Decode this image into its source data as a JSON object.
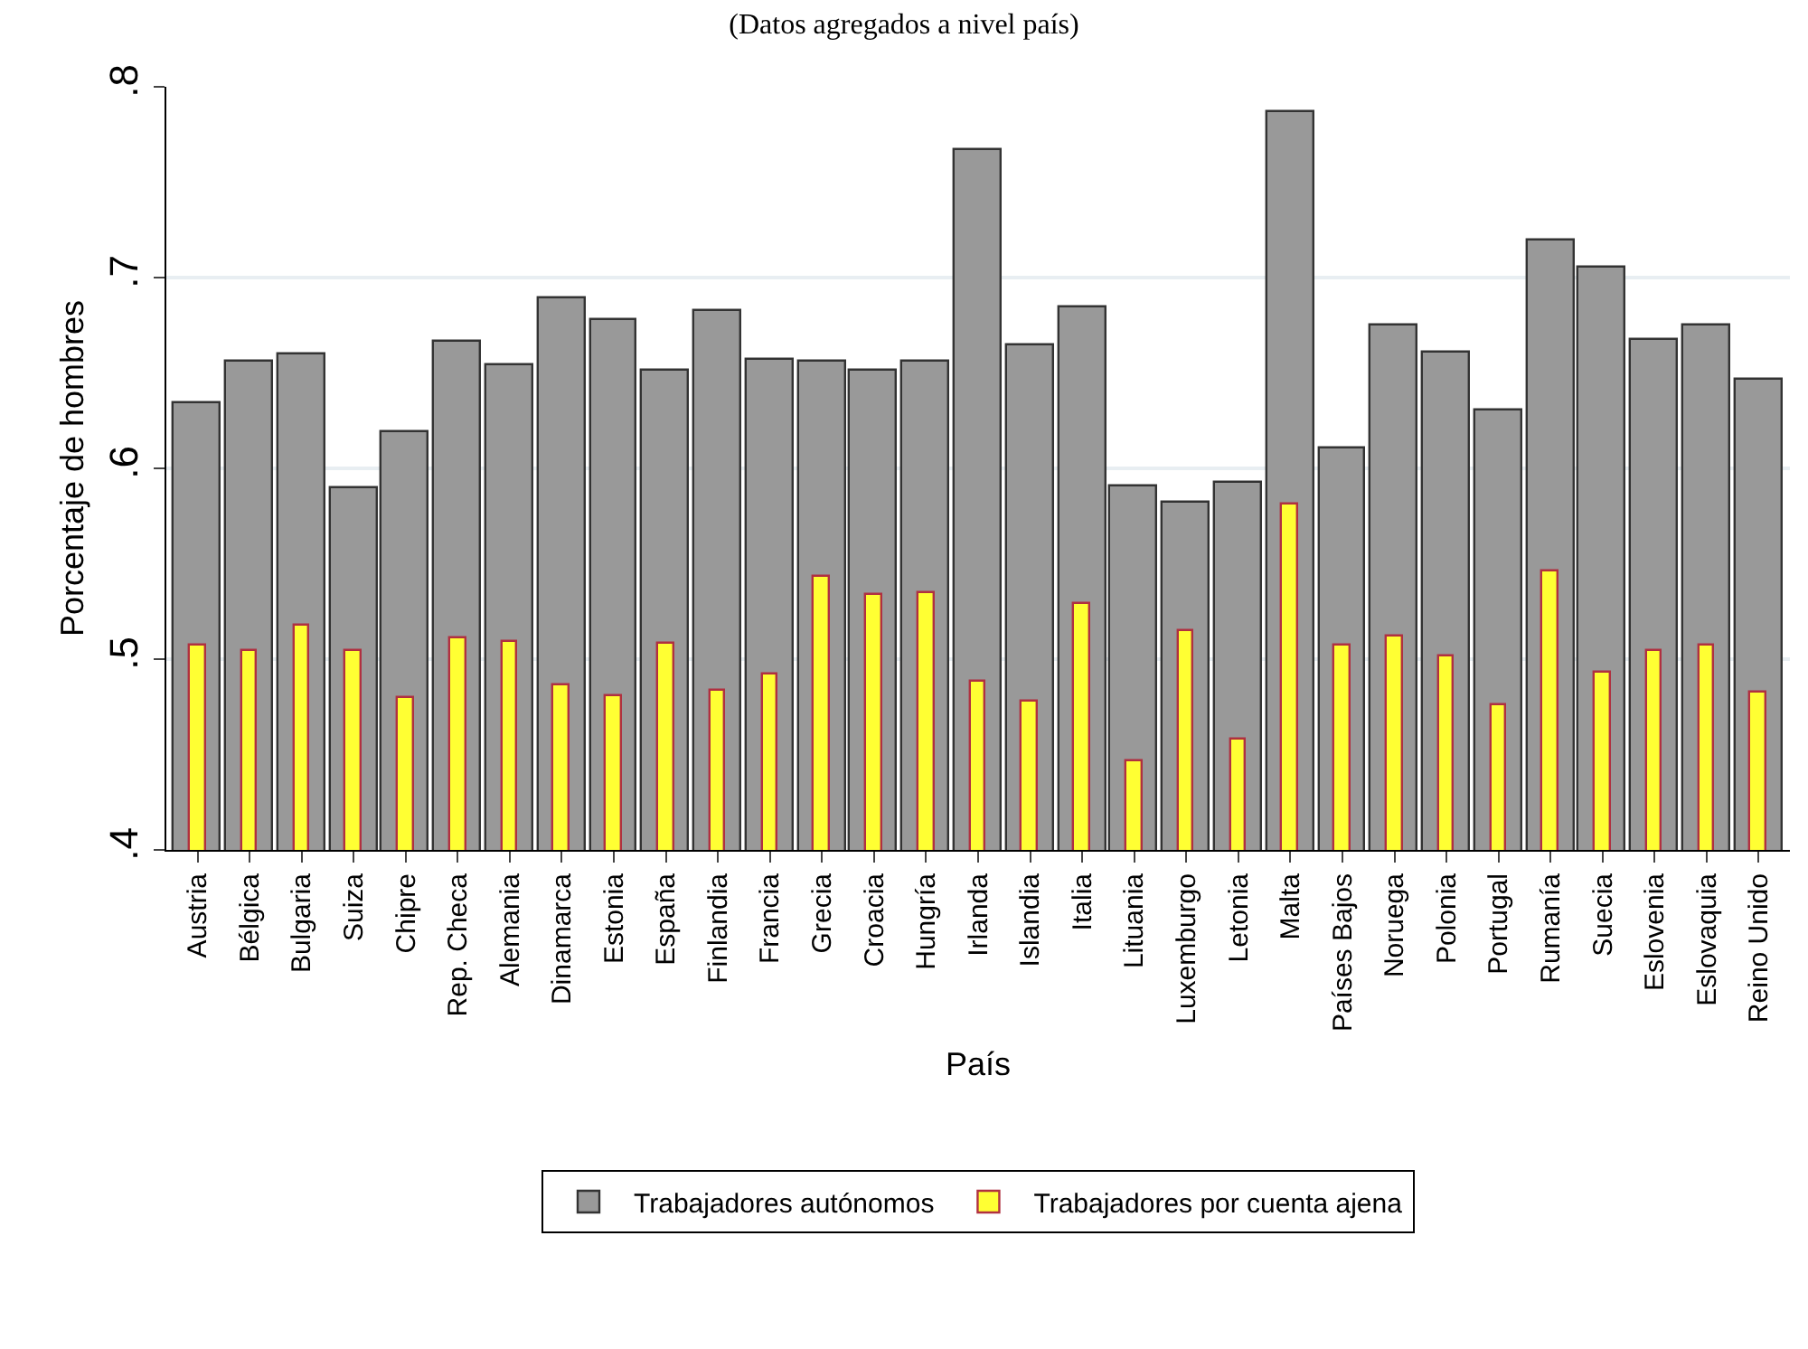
{
  "chart_data": {
    "type": "bar",
    "title": "(Datos agregados a nivel país)",
    "xlabel": "País",
    "ylabel": "Porcentaje de hombres",
    "categories": [
      "Austria",
      "Bélgica",
      "Bulgaria",
      "Suiza",
      "Chipre",
      "Rep. Checa",
      "Alemania",
      "Dinamarca",
      "Estonia",
      "España",
      "Finlandia",
      "Francia",
      "Grecia",
      "Croacia",
      "Hungría",
      "Irlanda",
      "Islandia",
      "Italia",
      "Lituania",
      "Luxemburgo",
      "Letonia",
      "Malta",
      "Países Bajos",
      "Noruega",
      "Polonia",
      "Portugal",
      "Rumanía",
      "Suecia",
      "Eslovenia",
      "Eslovaquia",
      "Reino Unido"
    ],
    "series": [
      {
        "name": "Trabajadores autónomos",
        "color": "#999999",
        "values": [
          0.634,
          0.656,
          0.66,
          0.59,
          0.619,
          0.666,
          0.654,
          0.689,
          0.678,
          0.651,
          0.682,
          0.657,
          0.656,
          0.651,
          0.656,
          0.767,
          0.664,
          0.684,
          0.591,
          0.582,
          0.592,
          0.787,
          0.61,
          0.675,
          0.661,
          0.63,
          0.719,
          0.705,
          0.667,
          0.675,
          0.646
        ]
      },
      {
        "name": "Trabajadores por cuenta ajena",
        "color": "#ffff33",
        "values": [
          0.507,
          0.504,
          0.518,
          0.504,
          0.48,
          0.511,
          0.509,
          0.486,
          0.481,
          0.508,
          0.483,
          0.492,
          0.543,
          0.534,
          0.535,
          0.488,
          0.478,
          0.529,
          0.446,
          0.515,
          0.458,
          0.581,
          0.507,
          0.512,
          0.501,
          0.476,
          0.546,
          0.493,
          0.504,
          0.507,
          0.482
        ]
      }
    ],
    "ylim": [
      0.4,
      0.8
    ],
    "yticks": [
      {
        "value": 0.4,
        "label": ".4"
      },
      {
        "value": 0.5,
        "label": ".5"
      },
      {
        "value": 0.6,
        "label": ".6"
      },
      {
        "value": 0.7,
        "label": ".7"
      },
      {
        "value": 0.8,
        "label": ".8"
      }
    ],
    "grid": "y",
    "legend": "bottom"
  }
}
